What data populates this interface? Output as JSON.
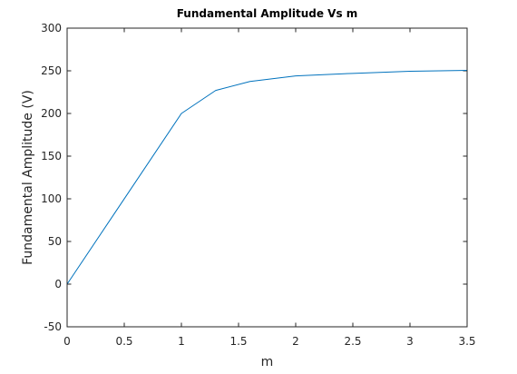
{
  "chart_data": {
    "type": "line",
    "title": "Fundamental  Amplitude  Vs  m",
    "xlabel": "m",
    "ylabel": "Fundamental Amplitude (V)",
    "xlim": [
      0,
      3.5
    ],
    "ylim": [
      -50,
      300
    ],
    "xticks": [
      0,
      0.5,
      1,
      1.5,
      2,
      2.5,
      3,
      3.5
    ],
    "xtick_labels": [
      "0",
      "0.5",
      "1",
      "1.5",
      "2",
      "2.5",
      "3",
      "3.5"
    ],
    "yticks": [
      -50,
      0,
      50,
      100,
      150,
      200,
      250,
      300
    ],
    "ytick_labels": [
      "-50",
      "0",
      "50",
      "100",
      "150",
      "200",
      "250",
      "300"
    ],
    "grid": false,
    "series": [
      {
        "color": "#0072bd",
        "x": [
          0,
          1,
          1.3,
          1.6,
          2,
          2.5,
          3,
          3.5
        ],
        "y": [
          0,
          200,
          227,
          237.5,
          244,
          247,
          249.5,
          250.5
        ]
      }
    ]
  }
}
